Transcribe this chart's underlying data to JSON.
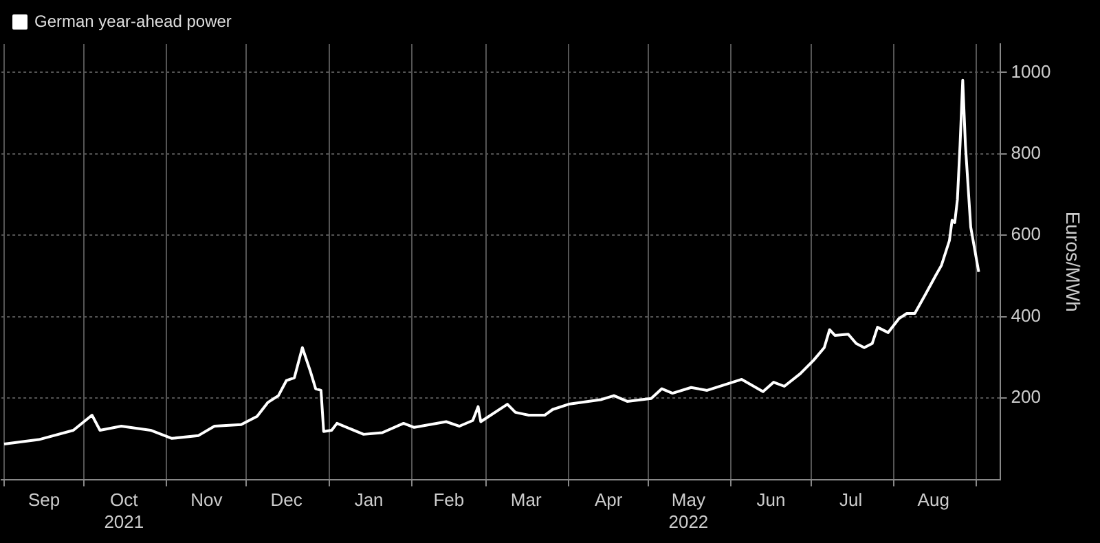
{
  "chart_data": {
    "type": "line",
    "x": [
      "2021-09-01",
      "2021-09-14",
      "2021-09-27",
      "2021-10-04",
      "2021-10-07",
      "2021-10-15",
      "2021-10-26",
      "2021-11-03",
      "2021-11-13",
      "2021-11-19",
      "2021-11-29",
      "2021-12-05",
      "2021-12-09",
      "2021-12-13",
      "2021-12-16",
      "2021-12-19",
      "2021-12-22",
      "2021-12-25",
      "2021-12-27",
      "2021-12-29",
      "2021-12-30",
      "2022-01-02",
      "2022-01-04",
      "2022-01-14",
      "2022-01-21",
      "2022-01-29",
      "2022-02-02",
      "2022-02-14",
      "2022-02-19",
      "2022-02-24",
      "2022-02-26",
      "2022-02-27",
      "2022-03-09",
      "2022-03-12",
      "2022-03-17",
      "2022-03-23",
      "2022-03-26",
      "2022-04-01",
      "2022-04-13",
      "2022-04-18",
      "2022-04-23",
      "2022-05-02",
      "2022-05-06",
      "2022-05-10",
      "2022-05-17",
      "2022-05-23",
      "2022-06-05",
      "2022-06-13",
      "2022-06-17",
      "2022-06-21",
      "2022-06-27",
      "2022-07-02",
      "2022-07-06",
      "2022-07-08",
      "2022-07-10",
      "2022-07-15",
      "2022-07-18",
      "2022-07-21",
      "2022-07-24",
      "2022-07-26",
      "2022-07-30",
      "2022-08-03",
      "2022-08-06",
      "2022-08-09",
      "2022-08-13",
      "2022-08-17",
      "2022-08-19",
      "2022-08-22",
      "2022-08-23",
      "2022-08-24",
      "2022-08-25",
      "2022-08-26",
      "2022-08-27",
      "2022-08-28",
      "2022-08-30",
      "2022-09-02"
    ],
    "series": [
      {
        "name": "German year-ahead power",
        "color": "#ffffff",
        "values": [
          87,
          98,
          121,
          158,
          121,
          131,
          121,
          101,
          108,
          131,
          135,
          155,
          189,
          206,
          243,
          250,
          324,
          266,
          223,
          219,
          118,
          121,
          138,
          111,
          115,
          138,
          128,
          142,
          131,
          145,
          179,
          142,
          185,
          165,
          158,
          158,
          172,
          185,
          196,
          206,
          192,
          199,
          223,
          212,
          226,
          219,
          246,
          216,
          239,
          229,
          260,
          293,
          324,
          368,
          354,
          357,
          334,
          324,
          334,
          374,
          361,
          395,
          408,
          408,
          455,
          503,
          526,
          587,
          637,
          631,
          688,
          823,
          981,
          823,
          620,
          510
        ]
      }
    ],
    "ylabel": "Euros/MWh",
    "xlim": [
      "2021-08-31",
      "2022-09-10"
    ],
    "xticks": [
      {
        "value": "2021-09-01",
        "label": null
      },
      {
        "value": "2021-09-16",
        "label": "Sep"
      },
      {
        "value": "2021-10-01",
        "label": null
      },
      {
        "value": "2021-10-16",
        "label": "Oct\n2021"
      },
      {
        "value": "2021-11-01",
        "label": null
      },
      {
        "value": "2021-11-16",
        "label": "Nov"
      },
      {
        "value": "2021-12-01",
        "label": null
      },
      {
        "value": "2021-12-16",
        "label": "Dec"
      },
      {
        "value": "2022-01-01",
        "label": null
      },
      {
        "value": "2022-01-16",
        "label": "Jan"
      },
      {
        "value": "2022-02-01",
        "label": null
      },
      {
        "value": "2022-02-15",
        "label": "Feb"
      },
      {
        "value": "2022-03-01",
        "label": null
      },
      {
        "value": "2022-03-16",
        "label": "Mar"
      },
      {
        "value": "2022-04-01",
        "label": null
      },
      {
        "value": "2022-04-16",
        "label": "Apr"
      },
      {
        "value": "2022-05-01",
        "label": null
      },
      {
        "value": "2022-05-16",
        "label": "May\n2022"
      },
      {
        "value": "2022-06-01",
        "label": null
      },
      {
        "value": "2022-06-16",
        "label": "Jun"
      },
      {
        "value": "2022-07-01",
        "label": null
      },
      {
        "value": "2022-07-16",
        "label": "Jul"
      },
      {
        "value": "2022-08-01",
        "label": null
      },
      {
        "value": "2022-08-16",
        "label": "Aug"
      },
      {
        "value": "2022-09-01",
        "label": null
      }
    ],
    "ylim": [
      0,
      1070
    ],
    "yticks": [
      200,
      400,
      600,
      800,
      1000
    ],
    "grid": true,
    "legend": "top left",
    "marker": "none",
    "line_style": "solid"
  }
}
